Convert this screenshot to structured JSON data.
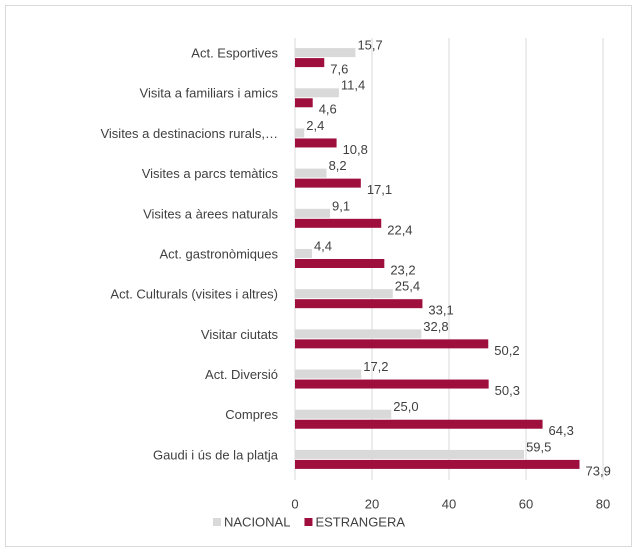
{
  "chart_data": {
    "type": "bar",
    "orientation": "horizontal",
    "categories": [
      "Act. Esportives",
      "Visita a familiars i amics",
      "Visites a destinacions rurals,…",
      "Visites a parcs temàtics",
      "Visites a àrees naturals",
      "Act. gastronòmiques",
      "Act. Culturals (visites i altres)",
      "Visitar ciutats",
      "Act. Diversió",
      "Compres",
      "Gaudi i ús de la platja"
    ],
    "series": [
      {
        "name": "NACIONAL",
        "color": "#d9d9d9",
        "values": [
          15.7,
          11.4,
          2.4,
          8.2,
          9.1,
          4.4,
          25.4,
          32.8,
          17.2,
          25.0,
          59.5
        ],
        "value_labels": [
          "15,7",
          "11,4",
          "2,4",
          "8,2",
          "9,1",
          "4,4",
          "25,4",
          "32,8",
          "17,2",
          "25,0",
          "59,5"
        ]
      },
      {
        "name": "ESTRANGERA",
        "color": "#9e0f3e",
        "values": [
          7.6,
          4.6,
          10.8,
          17.1,
          22.4,
          23.2,
          33.1,
          50.2,
          50.3,
          64.3,
          73.9
        ],
        "value_labels": [
          "7,6",
          "4,6",
          "10,8",
          "17,1",
          "22,4",
          "23,2",
          "33,1",
          "50,2",
          "50,3",
          "64,3",
          "73,9"
        ]
      }
    ],
    "xlim": [
      0,
      80
    ],
    "xticks": [
      0,
      20,
      40,
      60,
      80
    ],
    "grid": true,
    "legend": "bottom"
  }
}
